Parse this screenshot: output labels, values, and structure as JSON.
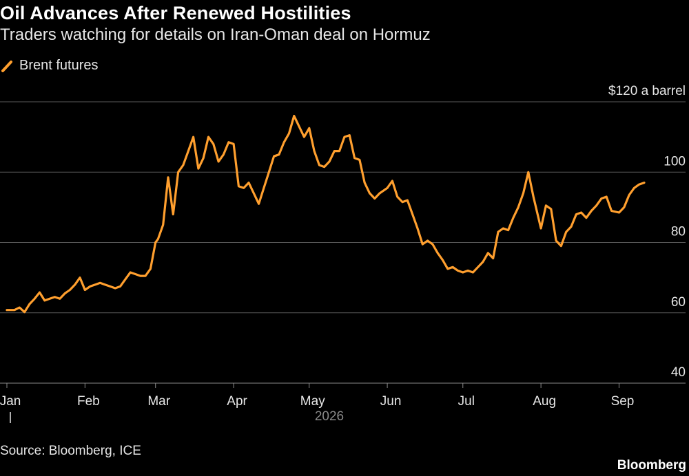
{
  "title": "Oil Advances After Renewed Hostilities",
  "subtitle": "Traders watching for details on Iran-Oman deal on Hormuz",
  "source": "Source: Bloomberg, ICE",
  "brand": "Bloomberg",
  "colors": {
    "line": "#ff9f2e",
    "grid": "#5a5a5a",
    "background": "#000000"
  },
  "chart_data": {
    "type": "line",
    "title": "Oil Advances After Renewed Hostilities",
    "subtitle": "Traders watching for details on Iran-Oman deal on Hormuz",
    "xlabel": "",
    "ylabel": "",
    "year_label": "2026",
    "ylim": [
      40,
      120
    ],
    "yticks": [
      40,
      60,
      80,
      100,
      120
    ],
    "ytick_labels": [
      "40",
      "60",
      "80",
      "100",
      "$120 a barrel"
    ],
    "xticks": [
      "2026-01-01",
      "2026-02-01",
      "2026-03-01",
      "2026-04-01",
      "2026-05-01",
      "2026-06-01",
      "2026-07-01",
      "2026-08-01",
      "2026-09-01"
    ],
    "xtick_labels": [
      "Jan",
      "Feb",
      "Mar",
      "Apr",
      "May",
      "Jun",
      "Jul",
      "Aug",
      "Sep"
    ],
    "xlim": [
      "2026-01-01",
      "2026-09-14"
    ],
    "grid": true,
    "legend": "top-left",
    "series": [
      {
        "name": "Brent futures",
        "x": [
          "2026-01-01",
          "2026-01-04",
          "2026-01-06",
          "2026-01-08",
          "2026-01-10",
          "2026-01-12",
          "2026-01-14",
          "2026-01-16",
          "2026-01-18",
          "2026-01-20",
          "2026-01-22",
          "2026-01-24",
          "2026-01-26",
          "2026-01-28",
          "2026-01-30",
          "2026-02-01",
          "2026-02-03",
          "2026-02-05",
          "2026-02-07",
          "2026-02-09",
          "2026-02-11",
          "2026-02-13",
          "2026-02-15",
          "2026-02-17",
          "2026-02-19",
          "2026-02-21",
          "2026-02-23",
          "2026-02-25",
          "2026-02-27",
          "2026-03-01",
          "2026-03-02",
          "2026-03-04",
          "2026-03-06",
          "2026-03-08",
          "2026-03-10",
          "2026-03-12",
          "2026-03-14",
          "2026-03-16",
          "2026-03-18",
          "2026-03-20",
          "2026-03-22",
          "2026-03-24",
          "2026-03-26",
          "2026-03-28",
          "2026-03-30",
          "2026-04-01",
          "2026-04-03",
          "2026-04-05",
          "2026-04-07",
          "2026-04-09",
          "2026-04-11",
          "2026-04-13",
          "2026-04-15",
          "2026-04-17",
          "2026-04-19",
          "2026-04-21",
          "2026-04-23",
          "2026-04-25",
          "2026-04-27",
          "2026-04-29",
          "2026-05-01",
          "2026-05-03",
          "2026-05-05",
          "2026-05-07",
          "2026-05-09",
          "2026-05-11",
          "2026-05-13",
          "2026-05-15",
          "2026-05-17",
          "2026-05-19",
          "2026-05-21",
          "2026-05-23",
          "2026-05-25",
          "2026-05-27",
          "2026-05-29",
          "2026-06-01",
          "2026-06-03",
          "2026-06-05",
          "2026-06-07",
          "2026-06-09",
          "2026-06-11",
          "2026-06-13",
          "2026-06-15",
          "2026-06-17",
          "2026-06-19",
          "2026-06-21",
          "2026-06-23",
          "2026-06-25",
          "2026-06-27",
          "2026-06-29",
          "2026-07-01",
          "2026-07-03",
          "2026-07-05",
          "2026-07-07",
          "2026-07-09",
          "2026-07-11",
          "2026-07-13",
          "2026-07-15",
          "2026-07-17",
          "2026-07-19",
          "2026-07-21",
          "2026-07-23",
          "2026-07-25",
          "2026-07-27",
          "2026-07-29",
          "2026-08-01",
          "2026-08-03",
          "2026-08-05",
          "2026-08-07",
          "2026-08-09",
          "2026-08-11",
          "2026-08-13",
          "2026-08-15",
          "2026-08-17",
          "2026-08-19",
          "2026-08-21",
          "2026-08-23",
          "2026-08-25",
          "2026-08-27",
          "2026-08-29",
          "2026-09-01",
          "2026-09-03",
          "2026-09-05",
          "2026-09-07",
          "2026-09-09",
          "2026-09-11"
        ],
        "y": [
          60.8,
          60.8,
          61.5,
          60.2,
          62.5,
          64.0,
          65.8,
          63.5,
          64.0,
          64.5,
          64.0,
          65.5,
          66.5,
          68.0,
          70.0,
          66.5,
          67.5,
          68.0,
          68.5,
          68.0,
          67.5,
          67.0,
          67.5,
          69.5,
          71.5,
          71.0,
          70.5,
          70.5,
          72.5,
          80.0,
          81.0,
          85.0,
          98.5,
          88.0,
          100.0,
          102.0,
          106.0,
          110.0,
          101.0,
          104.0,
          110.0,
          108.0,
          103.0,
          105.0,
          108.5,
          108.0,
          96.0,
          95.5,
          97.0,
          94.0,
          91.0,
          95.5,
          100.0,
          104.5,
          105.0,
          108.5,
          111.0,
          116.0,
          113.0,
          110.0,
          112.5,
          106.0,
          102.0,
          101.5,
          103.0,
          106.0,
          106.0,
          110.0,
          110.5,
          104.0,
          103.5,
          97.0,
          94.0,
          92.5,
          94.0,
          95.5,
          97.5,
          93.0,
          91.5,
          92.0,
          88.0,
          84.0,
          79.5,
          80.5,
          79.5,
          77.0,
          75.0,
          72.5,
          73.0,
          72.0,
          71.5,
          72.0,
          71.5,
          73.0,
          74.5,
          77.0,
          75.5,
          83.0,
          84.0,
          83.5,
          87.0,
          90.0,
          94.0,
          100.0,
          93.0,
          84.0,
          90.5,
          89.5,
          80.5,
          79.0,
          83.0,
          84.5,
          88.0,
          88.5,
          87.0,
          89.0,
          90.5,
          92.5,
          93.0,
          89.0,
          88.5,
          90.0,
          93.5,
          95.5,
          96.5,
          97.0
        ]
      }
    ]
  }
}
